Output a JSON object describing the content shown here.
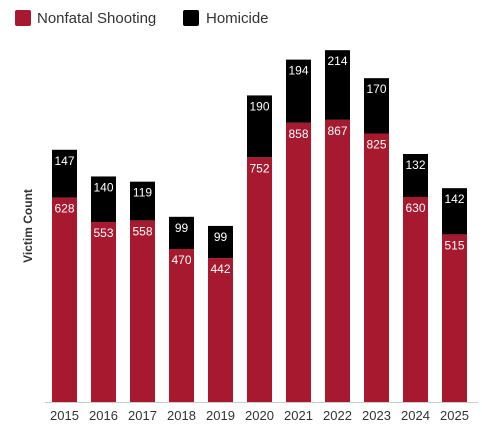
{
  "chart_data": {
    "type": "bar",
    "stacked": true,
    "categories": [
      "2015",
      "2016",
      "2017",
      "2018",
      "2019",
      "2020",
      "2021",
      "2022",
      "2023",
      "2024",
      "2025"
    ],
    "series": [
      {
        "name": "Nonfatal Shooting",
        "color": "#a6192e",
        "values": [
          628,
          553,
          558,
          470,
          442,
          752,
          858,
          867,
          825,
          630,
          515
        ]
      },
      {
        "name": "Homicide",
        "color": "#000000",
        "values": [
          147,
          140,
          119,
          99,
          99,
          190,
          194,
          214,
          170,
          132,
          142
        ]
      }
    ],
    "title": "",
    "xlabel": "",
    "ylabel": "Victim Count",
    "ylim": [
      0,
      1100
    ],
    "grid": false,
    "legend": "top-left"
  }
}
